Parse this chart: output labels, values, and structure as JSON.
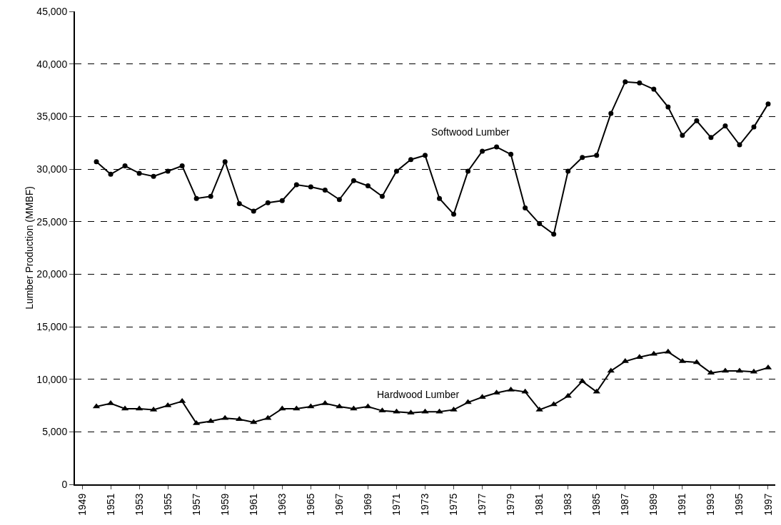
{
  "chart_data": {
    "type": "line",
    "ylabel": "Lumber Production (MMBF)",
    "x": [
      1950,
      1951,
      1952,
      1953,
      1954,
      1955,
      1956,
      1957,
      1958,
      1959,
      1960,
      1961,
      1962,
      1963,
      1964,
      1965,
      1966,
      1967,
      1968,
      1969,
      1970,
      1971,
      1972,
      1973,
      1974,
      1975,
      1976,
      1977,
      1978,
      1979,
      1980,
      1981,
      1982,
      1983,
      1984,
      1985,
      1986,
      1987,
      1988,
      1989,
      1990,
      1991,
      1992,
      1993,
      1994,
      1995,
      1996,
      1997
    ],
    "series": [
      {
        "name": "Softwood Lumber",
        "color": "#000000",
        "marker": "circle",
        "values": [
          30700,
          29500,
          30300,
          29600,
          29300,
          29800,
          30300,
          27200,
          27400,
          30700,
          26700,
          26000,
          26800,
          27000,
          28500,
          28300,
          28000,
          27100,
          28900,
          28400,
          27400,
          29800,
          30900,
          31300,
          27200,
          25700,
          29800,
          31700,
          32100,
          31400,
          26300,
          24800,
          23800,
          29800,
          31100,
          31300,
          35300,
          38300,
          38200,
          37600,
          35900,
          33200,
          34600,
          33000,
          34100,
          32300,
          34000,
          36200
        ]
      },
      {
        "name": "Hardwood Lumber",
        "color": "#000000",
        "marker": "triangle",
        "values": [
          7400,
          7700,
          7200,
          7200,
          7100,
          7500,
          7900,
          5800,
          6000,
          6300,
          6200,
          5900,
          6300,
          7200,
          7200,
          7400,
          7700,
          7400,
          7200,
          7400,
          7000,
          6900,
          6800,
          6900,
          6900,
          7100,
          7800,
          8300,
          8700,
          9000,
          8800,
          7100,
          7600,
          8400,
          9800,
          8800,
          10800,
          11700,
          12100,
          12400,
          12600,
          11700,
          11600,
          10600,
          10800,
          10800,
          10700,
          11100
        ]
      }
    ],
    "xlim": [
      1948.5,
      1997.5
    ],
    "xticks": [
      1949,
      1951,
      1953,
      1955,
      1957,
      1959,
      1961,
      1963,
      1965,
      1967,
      1969,
      1971,
      1973,
      1975,
      1977,
      1979,
      1981,
      1983,
      1985,
      1987,
      1989,
      1991,
      1993,
      1995,
      1997
    ],
    "ylim": [
      0,
      45000
    ],
    "yticks": [
      0,
      {
        "value": 5000,
        "label": "5,000"
      },
      {
        "value": 10000,
        "label": "10,000"
      },
      {
        "value": 15000,
        "label": "15,000"
      },
      {
        "value": 20000,
        "label": "20,000"
      },
      {
        "value": 25000,
        "label": "25,000"
      },
      {
        "value": 30000,
        "label": "30,000"
      },
      {
        "value": 35000,
        "label": "35,000"
      },
      {
        "value": 40000,
        "label": "40,000"
      },
      {
        "value": 45000,
        "label": "45,000"
      }
    ],
    "grid": "y",
    "legend": false,
    "line_style": "solid"
  }
}
